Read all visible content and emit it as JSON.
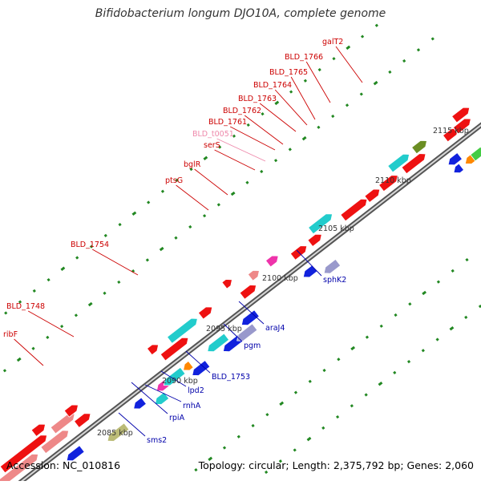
{
  "title": "Bifidobacterium longum DJO10A, complete genome",
  "footer": {
    "accession": "Accession: NC_010816",
    "summary": "Topology: circular; Length: 2,375,792 bp; Genes: 2,060"
  },
  "colors": {
    "red": "#ee1111",
    "cyan": "#22cccc",
    "blue": "#1122dd",
    "pink": "#ee8888",
    "olive": "#6b8e23",
    "green": "#44cc44",
    "orange": "#ff8800",
    "magenta": "#ee33aa",
    "khaki": "#bbbb77",
    "lavender": "#9999cc",
    "tick": "#228822",
    "label_top": "#cc0000",
    "label_light": "#ee88aa",
    "label_bottom": "#0000aa"
  },
  "scale_labels": [
    "2085 kbp",
    "2090 kbp",
    "2095 kbp",
    "2100 kbp",
    "2105 kbp",
    "2110 kbp",
    "2115 kbp"
  ],
  "gene_labels_top": [
    "ribF",
    "BLD_1748",
    "BLD_1754",
    "ptsG",
    "bglR",
    "serS",
    "BLD_t0051",
    "BLD_1761",
    "BLD_1762",
    "BLD_1763",
    "BLD_1764",
    "BLD_1765",
    "BLD_1766",
    "galT2"
  ],
  "gene_labels_bottom": [
    "sms2",
    "rpiA",
    "rnhA",
    "lpd2",
    "BLD_1753",
    "pgm",
    "araJ4",
    "sphK2"
  ]
}
